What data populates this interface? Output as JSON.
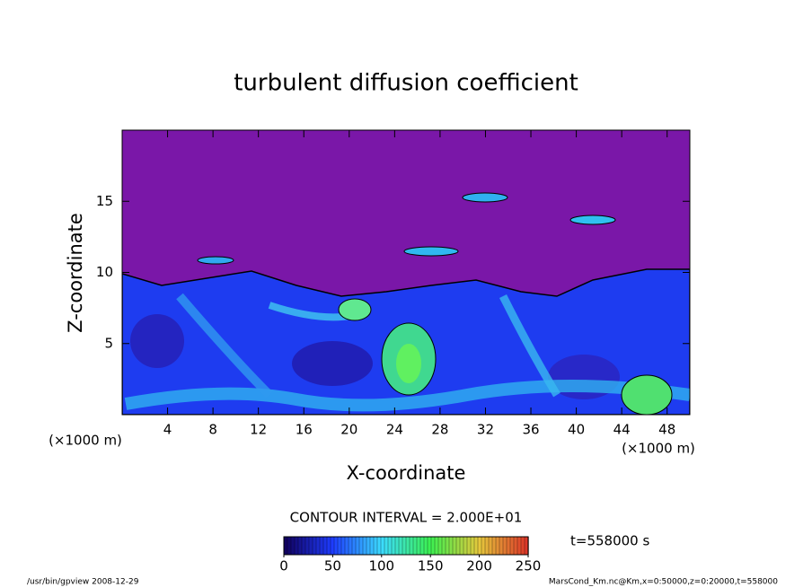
{
  "chart_data": {
    "type": "contour",
    "title": "turbulent diffusion coefficient",
    "xlabel": "X-coordinate",
    "ylabel": "Z-coordinate",
    "x_unit": "(×1000 m)",
    "y_unit": "(×1000 m)",
    "xlim": [
      0,
      50
    ],
    "ylim": [
      0,
      20
    ],
    "xticks": [
      4,
      8,
      12,
      16,
      20,
      24,
      28,
      32,
      36,
      40,
      44,
      48
    ],
    "yticks": [
      5,
      10,
      15
    ],
    "colorbar": {
      "lim": [
        0,
        250
      ],
      "ticks": [
        0,
        50,
        100,
        150,
        200,
        250
      ]
    },
    "contour_interval_label": "CONTOUR INTERVAL = 2.000E+01",
    "time_label": "t=558000 s",
    "footer_left": "/usr/bin/gpview   2008-12-29",
    "footer_right": "MarsCond_Km.nc@Km,x=0:50000,z=0:20000,t=558000"
  }
}
